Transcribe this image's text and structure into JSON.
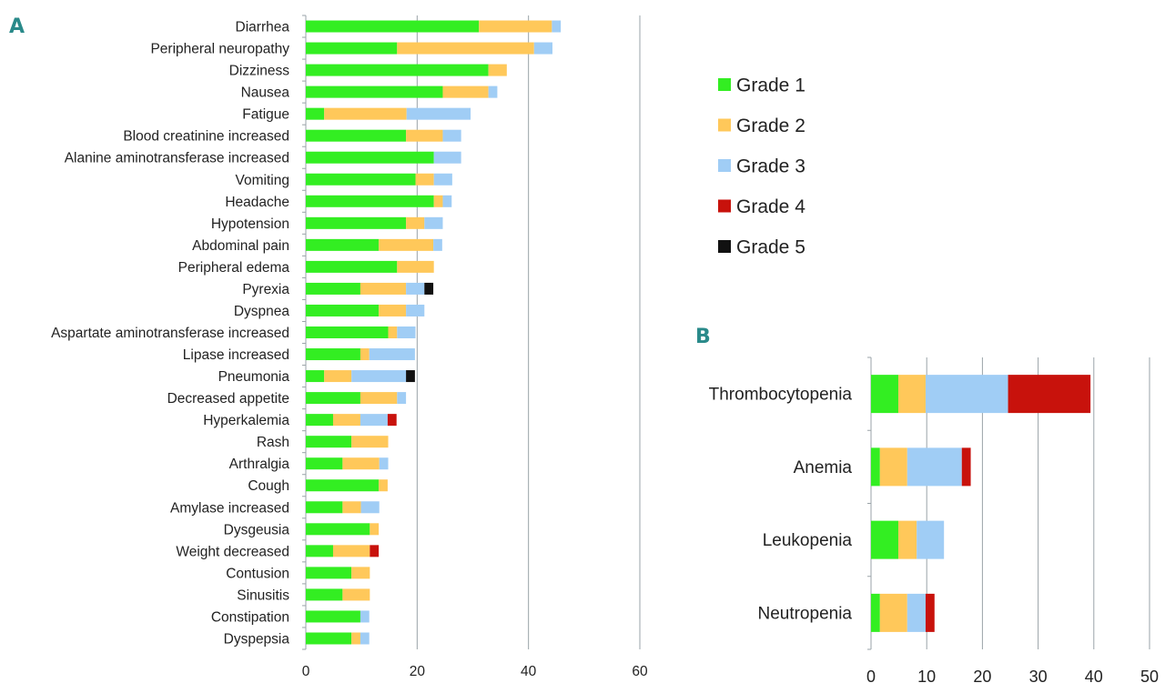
{
  "colors": {
    "Grade 1": "#33ee22",
    "Grade 2": "#ffc85a",
    "Grade 3": "#a0cdf5",
    "Grade 4": "#c8120c",
    "Grade 5": "#111111",
    "gridline": "#9aa3a8"
  },
  "legend": {
    "items": [
      "Grade 1",
      "Grade 2",
      "Grade 3",
      "Grade 4",
      "Grade 5"
    ]
  },
  "chart_data": [
    {
      "id": "A",
      "panel_label": "A",
      "type": "bar",
      "orientation": "horizontal",
      "stacked": true,
      "xlim": [
        0,
        60
      ],
      "xticks": [
        0,
        20,
        40,
        60
      ],
      "grid": true,
      "legend_position": "right",
      "categories": [
        "Diarrhea",
        "Peripheral neuropathy",
        "Dizziness",
        "Nausea",
        "Fatigue",
        "Blood creatinine increased",
        "Alanine aminotransferase increased",
        "Vomiting",
        "Headache",
        "Hypotension",
        "Abdominal pain",
        "Peripheral edema",
        "Pyrexia",
        "Dyspnea",
        "Aspartate aminotransferase increased",
        "Lipase increased",
        "Pneumonia",
        "Decreased appetite",
        "Hyperkalemia",
        "Rash",
        "Arthralgia",
        "Cough",
        "Amylase increased",
        "Dysgeusia",
        "Weight decreased",
        "Contusion",
        "Sinusitis",
        "Constipation",
        "Dyspepsia"
      ],
      "series": [
        {
          "name": "Grade 1",
          "values": [
            31.1,
            16.4,
            32.8,
            24.6,
            3.3,
            18.0,
            23.0,
            19.7,
            23.0,
            18.0,
            13.1,
            16.4,
            9.8,
            13.1,
            14.8,
            9.8,
            3.3,
            9.8,
            4.9,
            8.2,
            6.6,
            13.1,
            6.6,
            11.5,
            4.9,
            8.2,
            6.6,
            9.8,
            8.2
          ]
        },
        {
          "name": "Grade 2",
          "values": [
            13.1,
            24.6,
            3.3,
            8.2,
            14.8,
            6.6,
            0.0,
            3.3,
            1.6,
            3.3,
            9.8,
            6.6,
            8.2,
            4.9,
            1.6,
            1.6,
            4.9,
            6.6,
            4.9,
            6.6,
            6.6,
            1.6,
            3.3,
            1.6,
            6.6,
            3.3,
            4.9,
            0.0,
            1.6
          ]
        },
        {
          "name": "Grade 3",
          "values": [
            1.6,
            3.3,
            0.0,
            1.6,
            11.5,
            3.3,
            4.9,
            3.3,
            1.6,
            3.3,
            1.6,
            0.0,
            3.3,
            3.3,
            3.3,
            8.2,
            9.8,
            1.6,
            4.9,
            0.0,
            1.6,
            0.0,
            3.3,
            0.0,
            0.0,
            0.0,
            0.0,
            1.6,
            1.6
          ]
        },
        {
          "name": "Grade 4",
          "values": [
            0,
            0,
            0,
            0,
            0,
            0,
            0,
            0,
            0,
            0,
            0,
            0,
            0,
            0,
            0,
            0,
            0,
            0,
            1.6,
            0,
            0,
            0,
            0,
            0,
            1.6,
            0,
            0,
            0,
            0
          ]
        },
        {
          "name": "Grade 5",
          "values": [
            0,
            0,
            0,
            0,
            0,
            0,
            0,
            0,
            0,
            0,
            0,
            0,
            1.6,
            0,
            0,
            0,
            1.6,
            0,
            0,
            0,
            0,
            0,
            0,
            0,
            0,
            0,
            0,
            0,
            0
          ]
        }
      ]
    },
    {
      "id": "B",
      "panel_label": "B",
      "type": "bar",
      "orientation": "horizontal",
      "stacked": true,
      "xlim": [
        0,
        50
      ],
      "xticks": [
        0,
        10,
        20,
        30,
        40,
        50
      ],
      "grid": true,
      "categories": [
        "Thrombocytopenia",
        "Anemia",
        "Leukopenia",
        "Neutropenia"
      ],
      "series": [
        {
          "name": "Grade 1",
          "values": [
            4.9,
            1.6,
            4.9,
            1.6
          ]
        },
        {
          "name": "Grade 2",
          "values": [
            4.9,
            4.9,
            3.3,
            4.9
          ]
        },
        {
          "name": "Grade 3",
          "values": [
            14.8,
            9.8,
            4.9,
            3.3
          ]
        },
        {
          "name": "Grade 4",
          "values": [
            14.8,
            1.6,
            0.0,
            1.6
          ]
        },
        {
          "name": "Grade 5",
          "values": [
            0,
            0,
            0,
            0
          ]
        }
      ]
    }
  ]
}
